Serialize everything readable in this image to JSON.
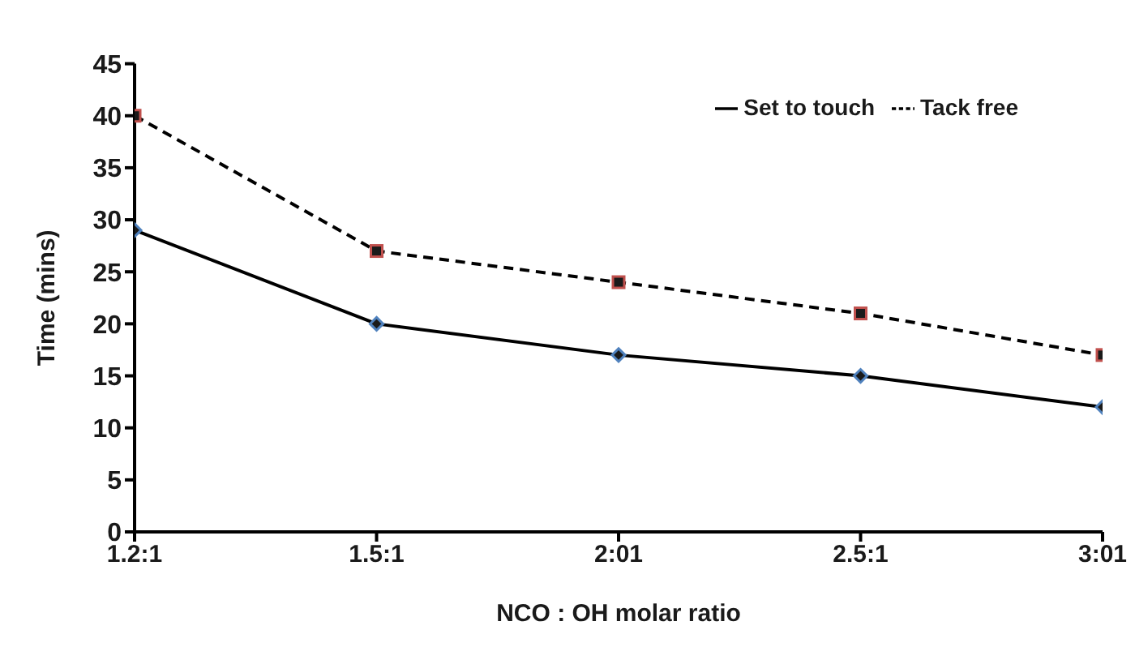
{
  "chart_data": {
    "type": "line",
    "xlabel": "NCO : OH molar ratio",
    "ylabel": "Time (mins)",
    "categories": [
      "1.2:1",
      "1.5:1",
      "2:01",
      "2.5:1",
      "3:01"
    ],
    "series": [
      {
        "name": "Set to touch",
        "color": "#000000",
        "values": [
          29,
          20,
          17,
          15,
          12
        ],
        "line_style": "solid",
        "marker": "diamond"
      },
      {
        "name": "Tack free",
        "color": "#000000",
        "values": [
          40,
          27,
          24,
          21,
          17
        ],
        "line_style": "dashed",
        "marker": "square"
      }
    ],
    "ylim": [
      0,
      45
    ],
    "yticks": [
      0,
      5,
      10,
      15,
      20,
      25,
      30,
      35,
      40,
      45
    ],
    "grid": false,
    "legend": "top right"
  }
}
